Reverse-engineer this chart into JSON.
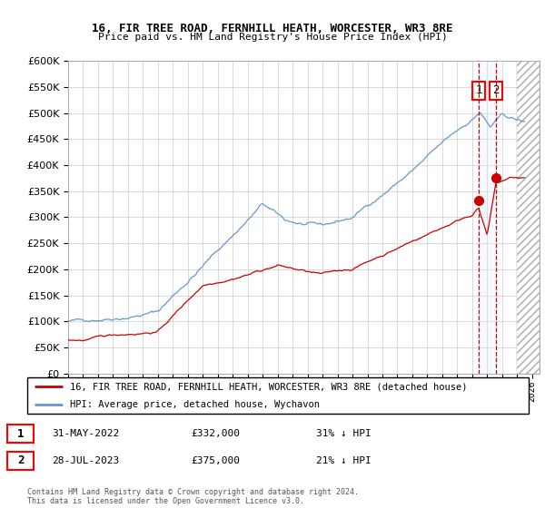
{
  "title1": "16, FIR TREE ROAD, FERNHILL HEATH, WORCESTER, WR3 8RE",
  "title2": "Price paid vs. HM Land Registry's House Price Index (HPI)",
  "legend_label_red": "16, FIR TREE ROAD, FERNHILL HEATH, WORCESTER, WR3 8RE (detached house)",
  "legend_label_blue": "HPI: Average price, detached house, Wychavon",
  "transaction1_date": "31-MAY-2022",
  "transaction1_price": "£332,000",
  "transaction1_hpi": "31% ↓ HPI",
  "transaction2_date": "28-JUL-2023",
  "transaction2_price": "£375,000",
  "transaction2_hpi": "21% ↓ HPI",
  "footer": "Contains HM Land Registry data © Crown copyright and database right 2024.\nThis data is licensed under the Open Government Licence v3.0.",
  "ylim_min": 0,
  "ylim_max": 600000,
  "yticks": [
    0,
    50000,
    100000,
    150000,
    200000,
    250000,
    300000,
    350000,
    400000,
    450000,
    500000,
    550000,
    600000
  ],
  "background_color": "#ffffff",
  "grid_color": "#cccccc",
  "red_color": "#cc0000",
  "blue_color": "#6699cc",
  "blue_fill": "#ddeeff",
  "vline_color": "#cc0000",
  "marker1_x": 2022.42,
  "marker1_y": 332000,
  "marker2_x": 2023.58,
  "marker2_y": 375000,
  "xmin": 1995,
  "xmax": 2026.5
}
